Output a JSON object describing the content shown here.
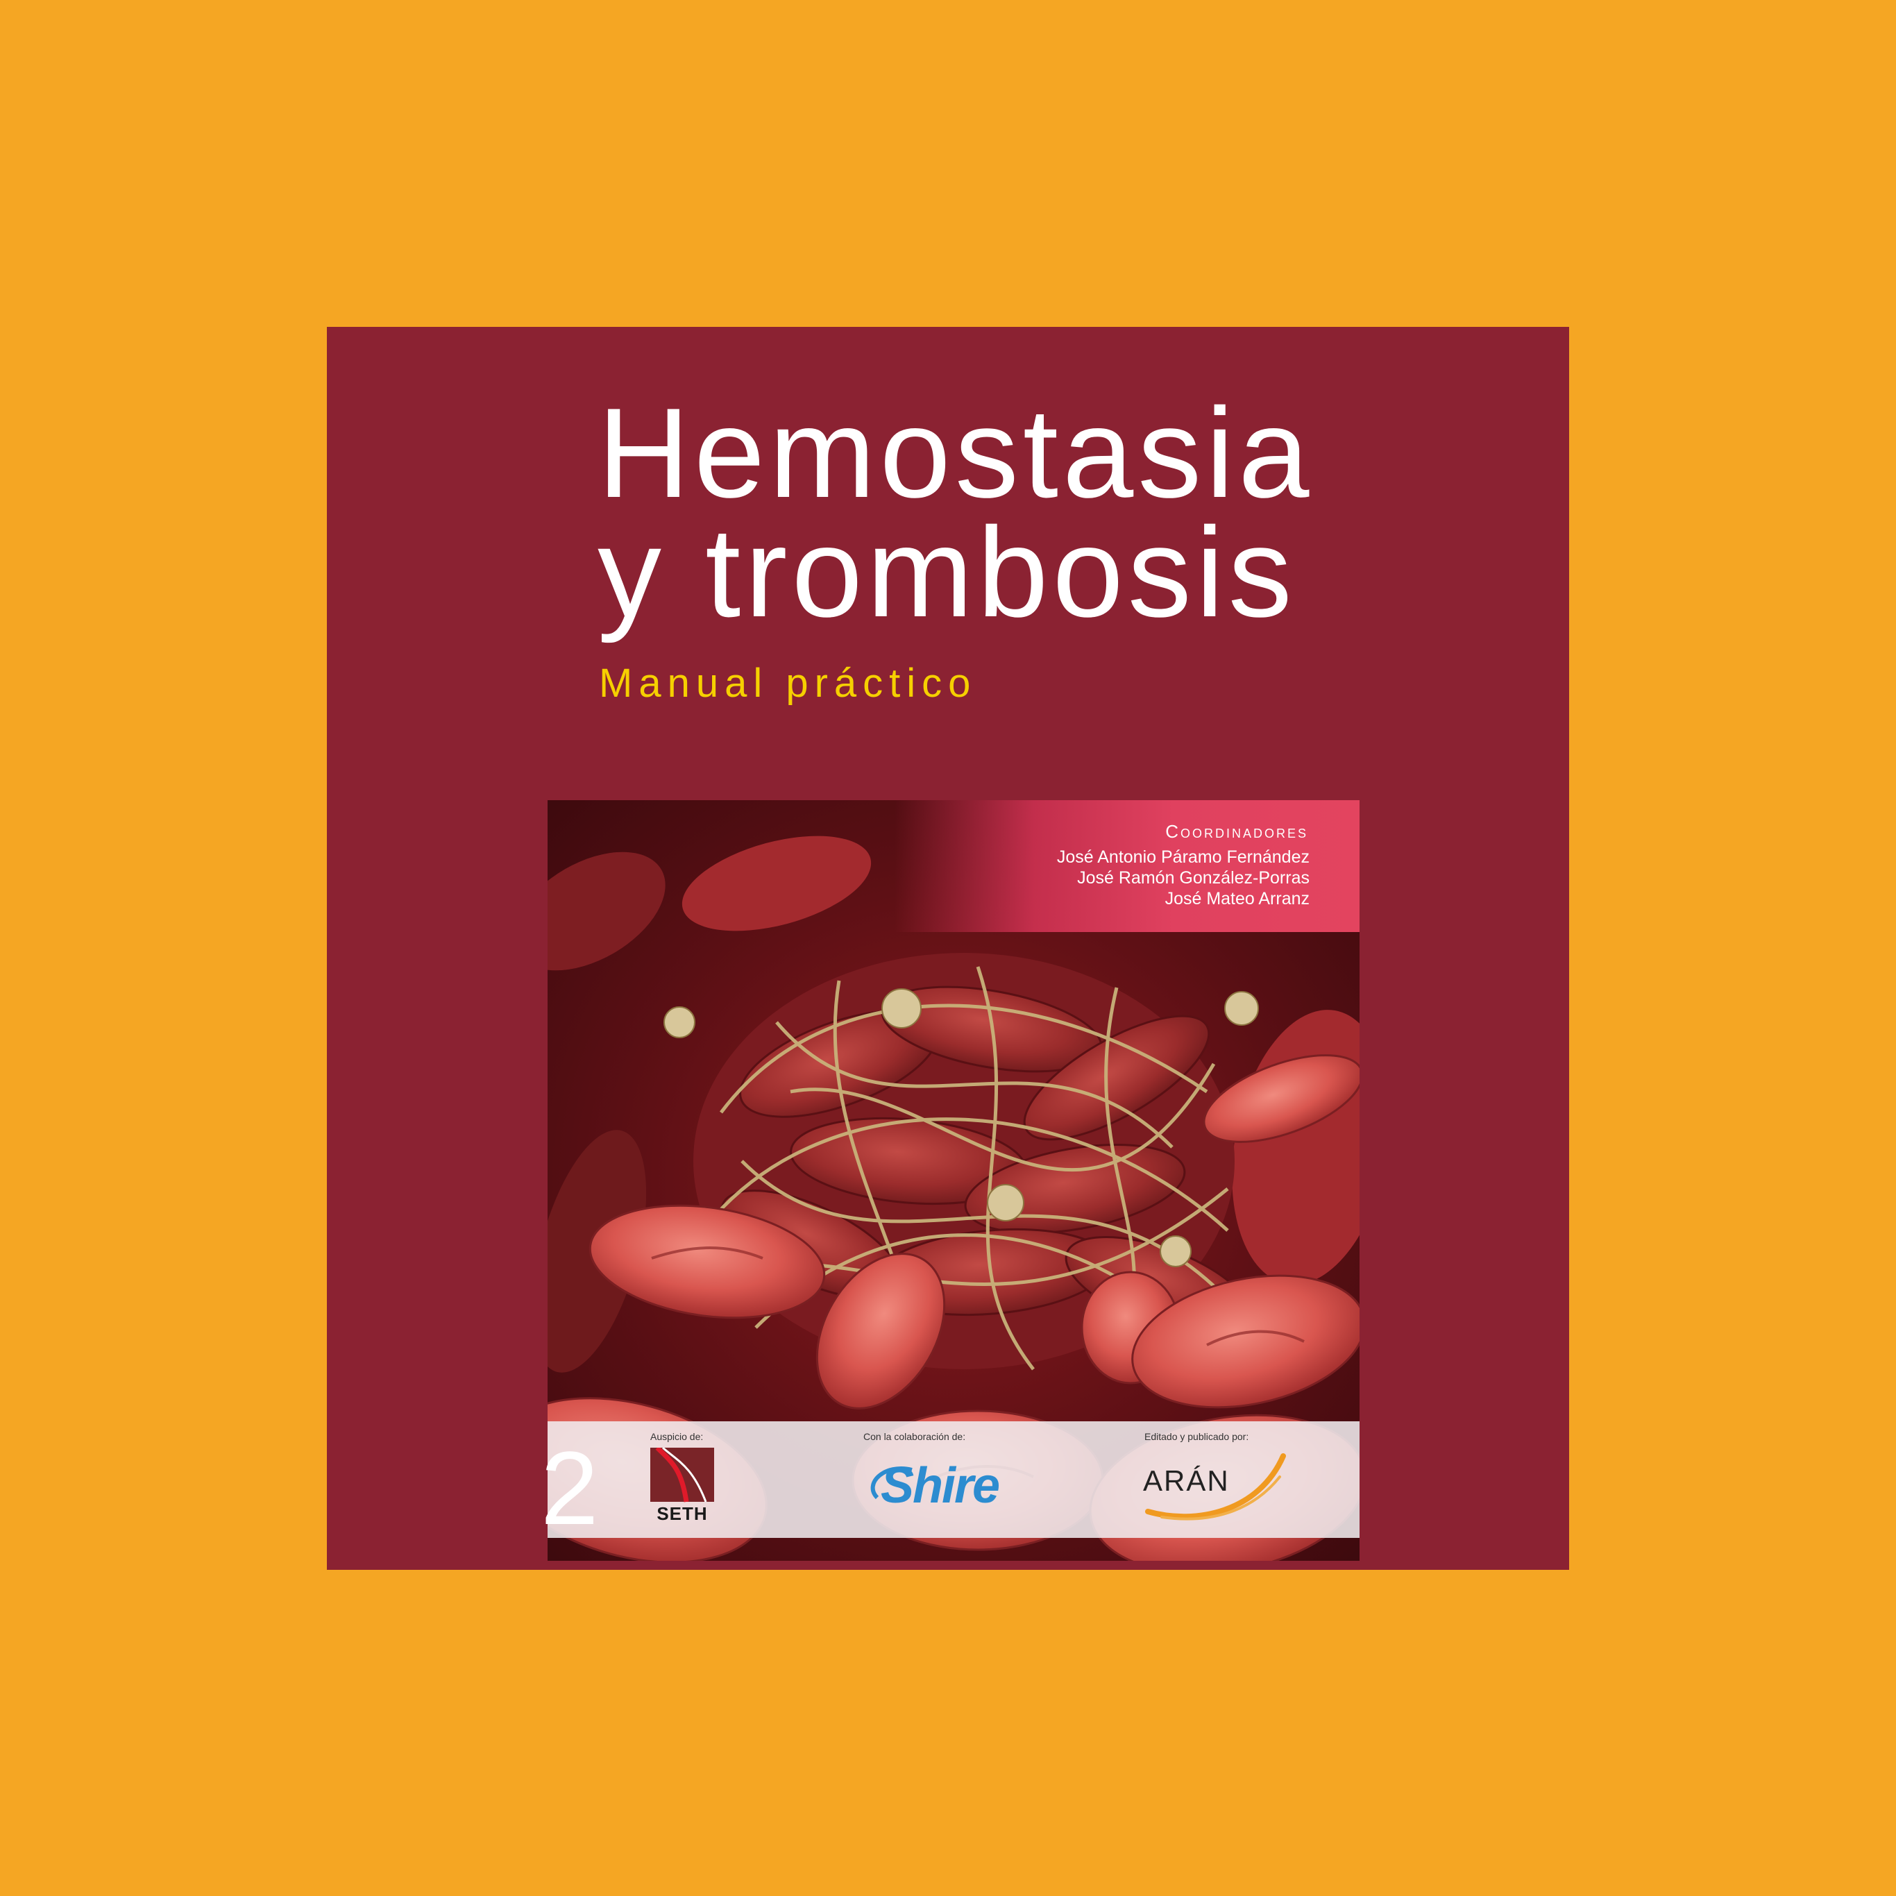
{
  "cover": {
    "title_line1": "Hemostasia",
    "title_line2": "y trombosis",
    "subtitle": "Manual práctico",
    "background_color": "#8B2232",
    "page_background": "#F5A623"
  },
  "coordinators": {
    "heading": "Coordinadores",
    "names": [
      "José Antonio Páramo Fernández",
      "José Ramón González-Porras",
      "José Mateo Arranz"
    ]
  },
  "illustration": {
    "icon": "blood-clot-illustration-icon"
  },
  "footer": {
    "auspice_label": "Auspicio de:",
    "auspice_logo": "SETH",
    "collaboration_label": "Con la colaboración de:",
    "collaboration_logo": "Shire",
    "publisher_label": "Editado y publicado por:",
    "publisher_logo": "ARÁN"
  },
  "page_number": "2"
}
